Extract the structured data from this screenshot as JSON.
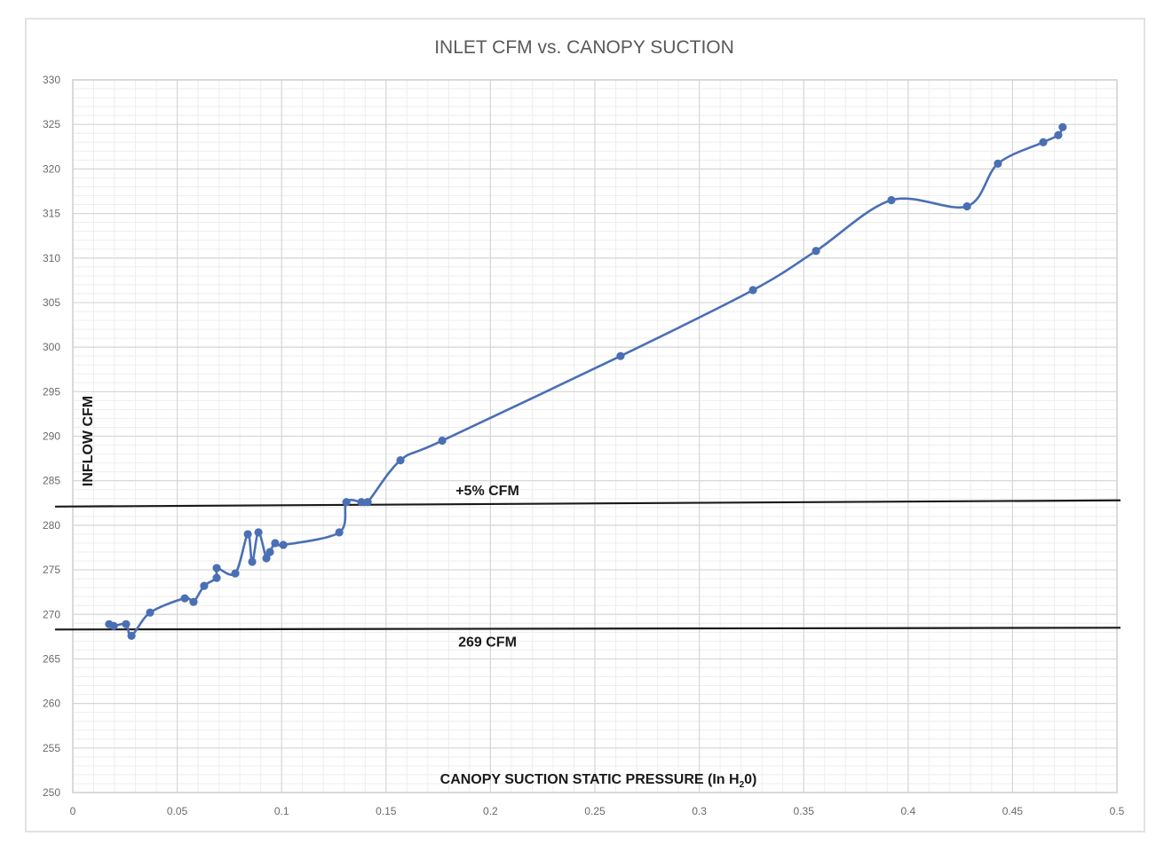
{
  "chart_data": {
    "type": "line",
    "title": "INLET CFM vs. CANOPY SUCTION",
    "xlabel": "CANOPY SUCTION STATIC PRESSURE (In H20)",
    "xlabel_parts": {
      "pre": "CANOPY SUCTION STATIC PRESSURE (In H",
      "sub": "2",
      "post": "0)"
    },
    "ylabel": "INFLOW CFM",
    "xlim": [
      0,
      0.5
    ],
    "ylim": [
      250,
      330
    ],
    "x_ticks": [
      "0",
      "0.05",
      "0.1",
      "0.15",
      "0.2",
      "0.25",
      "0.3",
      "0.35",
      "0.4",
      "0.45",
      "0.5"
    ],
    "y_ticks": [
      "250",
      "255",
      "260",
      "265",
      "270",
      "275",
      "280",
      "285",
      "290",
      "295",
      "300",
      "305",
      "310",
      "315",
      "320",
      "325",
      "330"
    ],
    "grid": {
      "major": true,
      "minor": true
    },
    "legend": null,
    "series": [
      {
        "name": "Inlet CFM",
        "color": "#4a6fb5",
        "marker": "circle",
        "x": [
          0.0174,
          0.0196,
          0.0255,
          0.0281,
          0.037,
          0.0536,
          0.0578,
          0.0629,
          0.0689,
          0.0689,
          0.0778,
          0.0838,
          0.0859,
          0.0889,
          0.0927,
          0.0944,
          0.0969,
          0.1008,
          0.1276,
          0.131,
          0.1382,
          0.1412,
          0.1569,
          0.1769,
          0.2623,
          0.3257,
          0.3559,
          0.392,
          0.4282,
          0.443,
          0.4647,
          0.4719,
          0.474
        ],
        "y": [
          268.9,
          268.7,
          268.9,
          267.6,
          270.2,
          271.8,
          271.4,
          273.2,
          274.1,
          275.2,
          274.6,
          279.0,
          275.9,
          279.2,
          276.3,
          277.0,
          278.0,
          277.8,
          279.2,
          282.6,
          282.6,
          282.6,
          287.3,
          289.5,
          299.0,
          306.4,
          310.8,
          316.5,
          315.8,
          320.6,
          323.0,
          323.8,
          324.7
        ]
      }
    ],
    "reference_lines": [
      {
        "label": "+5% CFM",
        "y_start": 282.1,
        "y_end": 282.8,
        "color": "#1a1a1a"
      },
      {
        "label": "269 CFM",
        "y_start": 268.3,
        "y_end": 268.5,
        "color": "#1a1a1a"
      }
    ],
    "annotations": [
      "+5% CFM",
      "269 CFM"
    ]
  }
}
